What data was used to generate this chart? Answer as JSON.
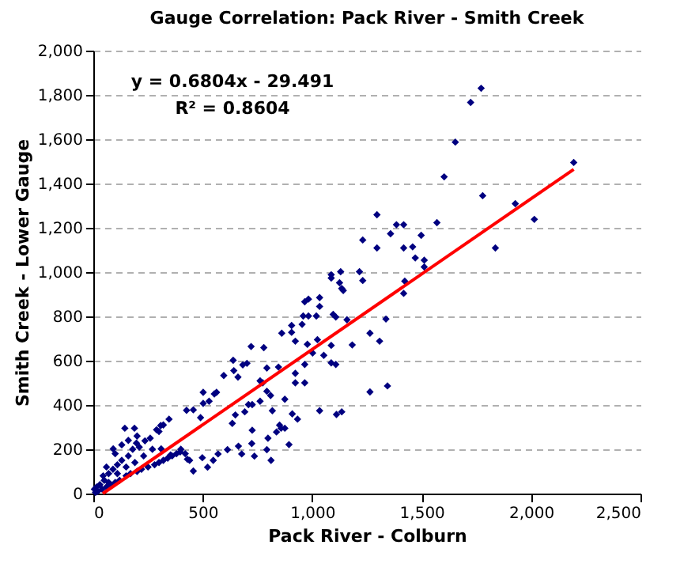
{
  "chart_data": {
    "type": "scatter",
    "title": "Gauge Correlation: Pack River - Smith Creek",
    "xlabel": "Pack River - Colburn",
    "ylabel": "Smith Creek - Lower Gauge",
    "xlim": [
      0,
      2500
    ],
    "xticks": [
      {
        "value": 0,
        "label": "0"
      },
      {
        "value": 500,
        "label": "500"
      },
      {
        "value": 1000,
        "label": "1,000"
      },
      {
        "value": 1500,
        "label": "1,500"
      },
      {
        "value": 2000,
        "label": "2,000"
      },
      {
        "value": 2500,
        "label": "2,500"
      }
    ],
    "ylim": [
      0,
      2000
    ],
    "yticks": [
      {
        "value": 0,
        "label": "0"
      },
      {
        "value": 200,
        "label": "200"
      },
      {
        "value": 400,
        "label": "400"
      },
      {
        "value": 600,
        "label": "600"
      },
      {
        "value": 800,
        "label": "800"
      },
      {
        "value": 1000,
        "label": "1,000"
      },
      {
        "value": 1200,
        "label": "1,200"
      },
      {
        "value": 1400,
        "label": "1,400"
      },
      {
        "value": 1600,
        "label": "1,600"
      },
      {
        "value": 1800,
        "label": "1,800"
      },
      {
        "value": 2000,
        "label": "2,000"
      }
    ],
    "grid": "y",
    "marker": "diamond",
    "annotations": [
      "y = 0.6804x - 29.491",
      "R² = 0.8604"
    ],
    "series": [
      {
        "color": "#000080",
        "x": [
          1772,
          1724,
          1654,
          1603,
          1779,
          2195,
          1928,
          2015,
          1837,
          1570,
          1296,
          1385,
          1418,
          1358,
          1231,
          1498,
          1296,
          1418,
          1459,
          1471,
          1512,
          1512,
          1418,
          1423,
          1337,
          1308,
          1264,
          1344,
          1264,
          1130,
          1216,
          1231,
          1087,
          1087,
          1135,
          1142,
          1125,
          1034,
          1034,
          983,
          966,
          959,
          983,
          1019,
          954,
          906,
          906,
          861,
          923,
          978,
          1024,
          1096,
          1108,
          1159,
          1183,
          1087,
          1087,
          1108,
          1053,
          1002,
          966,
          923,
          966,
          923,
          1034,
          1111,
          1135,
          721,
          779,
          846,
          793,
          702,
          683,
          639,
          642,
          661,
          596,
          502,
          553,
          563,
          529,
          502,
          490,
          457,
          426,
          762,
          774,
          793,
          810,
          762,
          726,
          709,
          692,
          649,
          635,
          818,
          875,
          909,
          933,
          851,
          858,
          875,
          837,
          798,
          894,
          812,
          793,
          736,
          724,
          726,
          663,
          678,
          613,
          570,
          548,
          522,
          457,
          498,
          430,
          397,
          353,
          310,
          346,
          308,
          289,
          236,
          197,
          144,
          91,
          188,
          20,
          30,
          40,
          50,
          60,
          70,
          80,
          90,
          100,
          110,
          120,
          130,
          150,
          160,
          170,
          180,
          200,
          210,
          220,
          250,
          260,
          280,
          300,
          320,
          340,
          360,
          380,
          400,
          420,
          440,
          300,
          320,
          270,
          230,
          190,
          150,
          110,
          70,
          10,
          5,
          15,
          45,
          60,
          100,
          130,
          160,
          200
        ],
        "values": [
          1830,
          1766,
          1587,
          1430,
          1345,
          1495,
          1309,
          1238,
          1109,
          1223,
          1259,
          1214,
          1214,
          1173,
          1145,
          1166,
          1109,
          1109,
          1114,
          1064,
          1054,
          1023,
          904,
          959,
          788,
          688,
          724,
          486,
          459,
          1002,
          1002,
          962,
          973,
          988,
          926,
          917,
          952,
          885,
          845,
          878,
          866,
          802,
          802,
          802,
          764,
          759,
          728,
          724,
          688,
          674,
          695,
          809,
          797,
          785,
          671,
          669,
          590,
          583,
          624,
          635,
          583,
          543,
          500,
          500,
          374,
          357,
          369,
          664,
          659,
          571,
          567,
          588,
          581,
          602,
          555,
          526,
          533,
          457,
          450,
          457,
          417,
          407,
          343,
          378,
          376,
          509,
          500,
          462,
          443,
          417,
          402,
          402,
          369,
          355,
          317,
          374,
          426,
          360,
          336,
          309,
          295,
          295,
          278,
          250,
          221,
          150,
          198,
          169,
          226,
          286,
          214,
          179,
          198,
          179,
          150,
          119,
          102,
          162,
          155,
          188,
          174,
          202,
          336,
          307,
          288,
          238,
          228,
          295,
          202,
          295,
          10,
          40,
          20,
          60,
          30,
          90,
          40,
          110,
          50,
          130,
          60,
          150,
          80,
          170,
          90,
          200,
          100,
          210,
          110,
          120,
          250,
          130,
          140,
          150,
          160,
          170,
          180,
          200,
          180,
          150,
          280,
          310,
          200,
          170,
          140,
          120,
          90,
          50,
          5,
          20,
          30,
          80,
          120,
          180,
          220,
          240,
          260
        ]
      },
      {
        "type": "line",
        "color": "#ff0000",
        "marker": "none",
        "x": [
          43.34,
          2195
        ],
        "values": [
          0,
          1464
        ]
      }
    ]
  }
}
